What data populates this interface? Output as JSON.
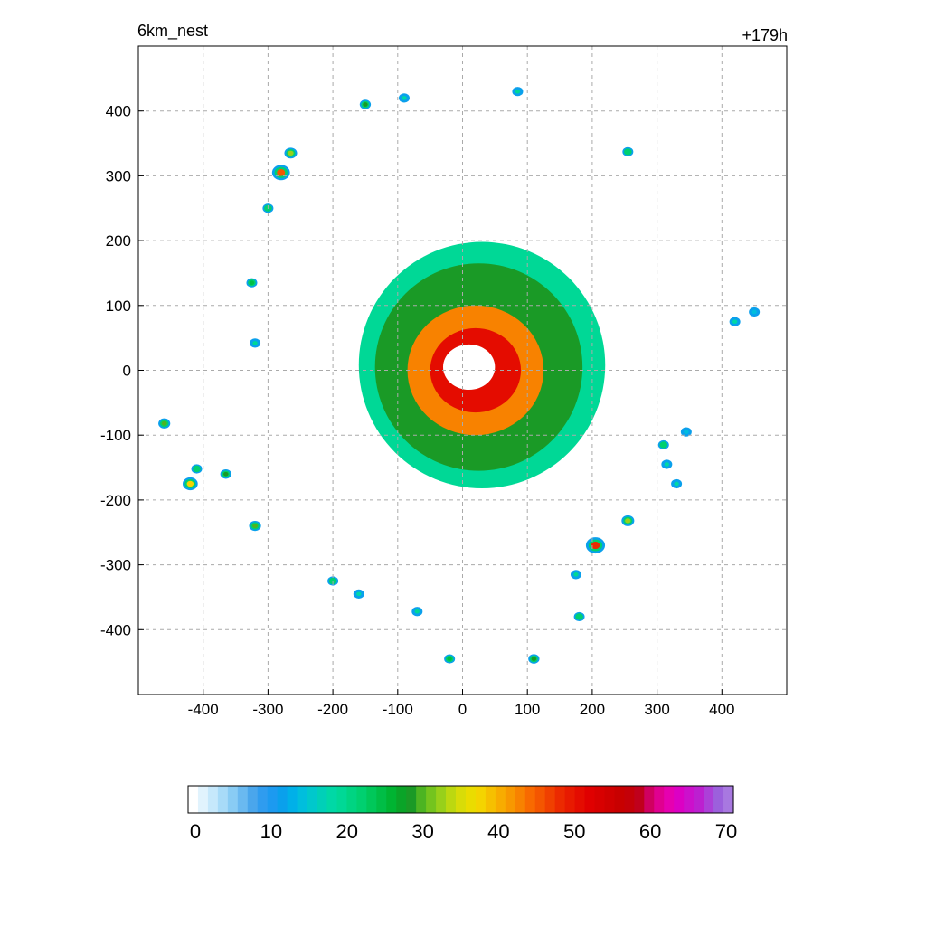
{
  "header": {
    "left_title": "6km_nest",
    "right_title": "+179h"
  },
  "chart_data": {
    "type": "heatmap",
    "title": "",
    "xlabel": "",
    "ylabel": "",
    "xlim": [
      -500,
      500
    ],
    "ylim": [
      -500,
      500
    ],
    "x_ticks": [
      -400,
      -300,
      -200,
      -100,
      0,
      100,
      200,
      300,
      400
    ],
    "y_ticks": [
      400,
      300,
      200,
      100,
      0,
      -100,
      -200,
      -300,
      -400
    ],
    "grid": true,
    "colorbar": {
      "min": 0,
      "max": 70,
      "tick_labels": [
        "0",
        "10",
        "20",
        "30",
        "40",
        "50",
        "60",
        "70"
      ],
      "colors": [
        "#ffffff",
        "#e1f3fd",
        "#c6e8fb",
        "#a8dbf8",
        "#89ccf4",
        "#6ab9f0",
        "#4aa6ec",
        "#2f9cef",
        "#1c9af0",
        "#0aa0ec",
        "#00b0e8",
        "#00bedd",
        "#00c8cc",
        "#00d0b8",
        "#00d8a6",
        "#00d896",
        "#00d482",
        "#00d070",
        "#00c85a",
        "#00be46",
        "#00b432",
        "#0aa428",
        "#1a9a26",
        "#4cb422",
        "#74c41e",
        "#98d01a",
        "#bcd810",
        "#d8dc08",
        "#eadc00",
        "#f4d400",
        "#f6c000",
        "#f8ac00",
        "#f89800",
        "#f88200",
        "#f86a00",
        "#f45600",
        "#f04000",
        "#ec2a00",
        "#e81a00",
        "#e40c00",
        "#e00000",
        "#d80000",
        "#d00000",
        "#c80000",
        "#c40008",
        "#c0001c",
        "#d00060",
        "#e00090",
        "#e600b0",
        "#dc00c4",
        "#cc10cc",
        "#bc20d0",
        "#ac40d8",
        "#9c60dc",
        "#a878e0"
      ]
    },
    "features": [
      {
        "kind": "ring",
        "cx": 30,
        "cy": 8,
        "rx": 190,
        "ry": 190,
        "value": 20
      },
      {
        "kind": "ring",
        "cx": 25,
        "cy": 5,
        "rx": 160,
        "ry": 160,
        "value": 28
      },
      {
        "kind": "ring",
        "cx": 20,
        "cy": 0,
        "rx": 105,
        "ry": 100,
        "value": 42
      },
      {
        "kind": "ring",
        "cx": 20,
        "cy": 0,
        "rx": 70,
        "ry": 65,
        "value": 50
      },
      {
        "kind": "eye",
        "cx": 10,
        "cy": 5,
        "rx": 40,
        "ry": 35,
        "value": 0
      },
      {
        "kind": "cell",
        "x": -280,
        "y": 305,
        "value": 45
      },
      {
        "kind": "cell",
        "x": -265,
        "y": 335,
        "value": 32
      },
      {
        "kind": "cell",
        "x": -300,
        "y": 250,
        "value": 22
      },
      {
        "kind": "cell",
        "x": -150,
        "y": 410,
        "value": 28
      },
      {
        "kind": "cell",
        "x": -90,
        "y": 420,
        "value": 18
      },
      {
        "kind": "cell",
        "x": 85,
        "y": 430,
        "value": 20
      },
      {
        "kind": "cell",
        "x": 255,
        "y": 337,
        "value": 22
      },
      {
        "kind": "cell",
        "x": -325,
        "y": 135,
        "value": 25
      },
      {
        "kind": "cell",
        "x": -320,
        "y": 42,
        "value": 20
      },
      {
        "kind": "cell",
        "x": 420,
        "y": 75,
        "value": 18
      },
      {
        "kind": "cell",
        "x": 450,
        "y": 90,
        "value": 15
      },
      {
        "kind": "cell",
        "x": -460,
        "y": -82,
        "value": 30
      },
      {
        "kind": "cell",
        "x": -420,
        "y": -175,
        "value": 38
      },
      {
        "kind": "cell",
        "x": -410,
        "y": -152,
        "value": 22
      },
      {
        "kind": "cell",
        "x": -365,
        "y": -160,
        "value": 28
      },
      {
        "kind": "cell",
        "x": -320,
        "y": -240,
        "value": 30
      },
      {
        "kind": "cell",
        "x": -200,
        "y": -325,
        "value": 22
      },
      {
        "kind": "cell",
        "x": -160,
        "y": -345,
        "value": 18
      },
      {
        "kind": "cell",
        "x": -70,
        "y": -372,
        "value": 20
      },
      {
        "kind": "cell",
        "x": -20,
        "y": -445,
        "value": 25
      },
      {
        "kind": "cell",
        "x": 110,
        "y": -445,
        "value": 28
      },
      {
        "kind": "cell",
        "x": 205,
        "y": -270,
        "value": 48
      },
      {
        "kind": "cell",
        "x": 255,
        "y": -232,
        "value": 32
      },
      {
        "kind": "cell",
        "x": 180,
        "y": -380,
        "value": 22
      },
      {
        "kind": "cell",
        "x": 175,
        "y": -315,
        "value": 20
      },
      {
        "kind": "cell",
        "x": 310,
        "y": -115,
        "value": 22
      },
      {
        "kind": "cell",
        "x": 315,
        "y": -145,
        "value": 18
      },
      {
        "kind": "cell",
        "x": 330,
        "y": -175,
        "value": 18
      },
      {
        "kind": "cell",
        "x": 345,
        "y": -95,
        "value": 15
      }
    ]
  }
}
